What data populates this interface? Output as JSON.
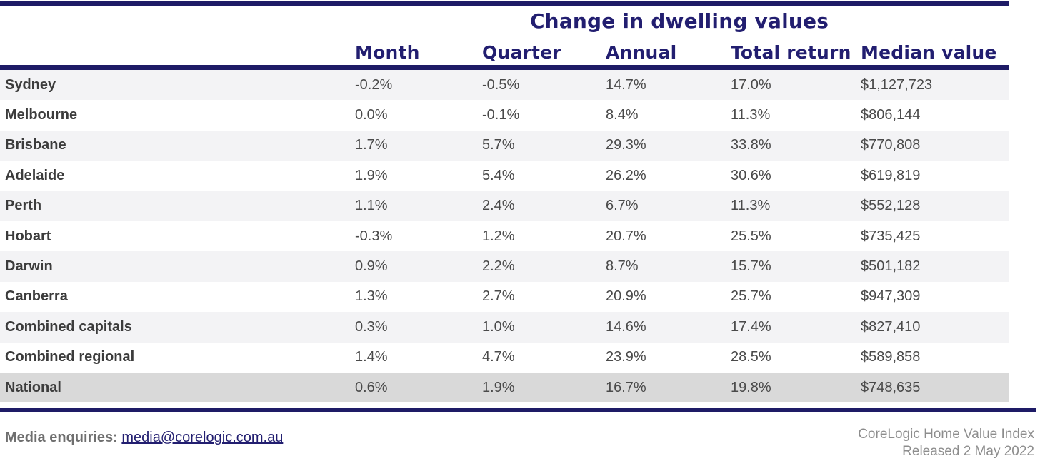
{
  "table": {
    "title": "Change in dwelling values",
    "columns": [
      "Month",
      "Quarter",
      "Annual",
      "Total return",
      "Median value"
    ],
    "rows": [
      {
        "label": "Sydney",
        "month": "-0.2%",
        "quarter": "-0.5%",
        "annual": "14.7%",
        "total_return": "17.0%",
        "median_value": "$1,127,723"
      },
      {
        "label": "Melbourne",
        "month": "0.0%",
        "quarter": "-0.1%",
        "annual": "8.4%",
        "total_return": "11.3%",
        "median_value": "$806,144"
      },
      {
        "label": "Brisbane",
        "month": "1.7%",
        "quarter": "5.7%",
        "annual": "29.3%",
        "total_return": "33.8%",
        "median_value": "$770,808"
      },
      {
        "label": "Adelaide",
        "month": "1.9%",
        "quarter": "5.4%",
        "annual": "26.2%",
        "total_return": "30.6%",
        "median_value": "$619,819"
      },
      {
        "label": "Perth",
        "month": "1.1%",
        "quarter": "2.4%",
        "annual": "6.7%",
        "total_return": "11.3%",
        "median_value": "$552,128"
      },
      {
        "label": "Hobart",
        "month": "-0.3%",
        "quarter": "1.2%",
        "annual": "20.7%",
        "total_return": "25.5%",
        "median_value": "$735,425"
      },
      {
        "label": "Darwin",
        "month": "0.9%",
        "quarter": "2.2%",
        "annual": "8.7%",
        "total_return": "15.7%",
        "median_value": "$501,182"
      },
      {
        "label": "Canberra",
        "month": "1.3%",
        "quarter": "2.7%",
        "annual": "20.9%",
        "total_return": "25.7%",
        "median_value": "$947,309"
      },
      {
        "label": "Combined capitals",
        "month": "0.3%",
        "quarter": "1.0%",
        "annual": "14.6%",
        "total_return": "17.4%",
        "median_value": "$827,410"
      },
      {
        "label": "Combined regional",
        "month": "1.4%",
        "quarter": "4.7%",
        "annual": "23.9%",
        "total_return": "28.5%",
        "median_value": "$589,858"
      },
      {
        "label": "National",
        "month": "0.6%",
        "quarter": "1.9%",
        "annual": "16.7%",
        "total_return": "19.8%",
        "median_value": "$748,635"
      }
    ]
  },
  "footer": {
    "media_label": "Media enquiries:",
    "media_email": "media@corelogic.com.au",
    "source_line1": "CoreLogic Home Value Index",
    "source_line2": "Released 2 May 2022"
  },
  "colors": {
    "accent_navy": "#1e1b66",
    "header_text_navy": "#221e70",
    "row_stripe": "#f3f3f5",
    "national_row_bg": "#d9d9d9",
    "label_text": "#3c3c3c",
    "value_text": "#4a4a4a",
    "footer_gray": "#8d8d8d"
  }
}
